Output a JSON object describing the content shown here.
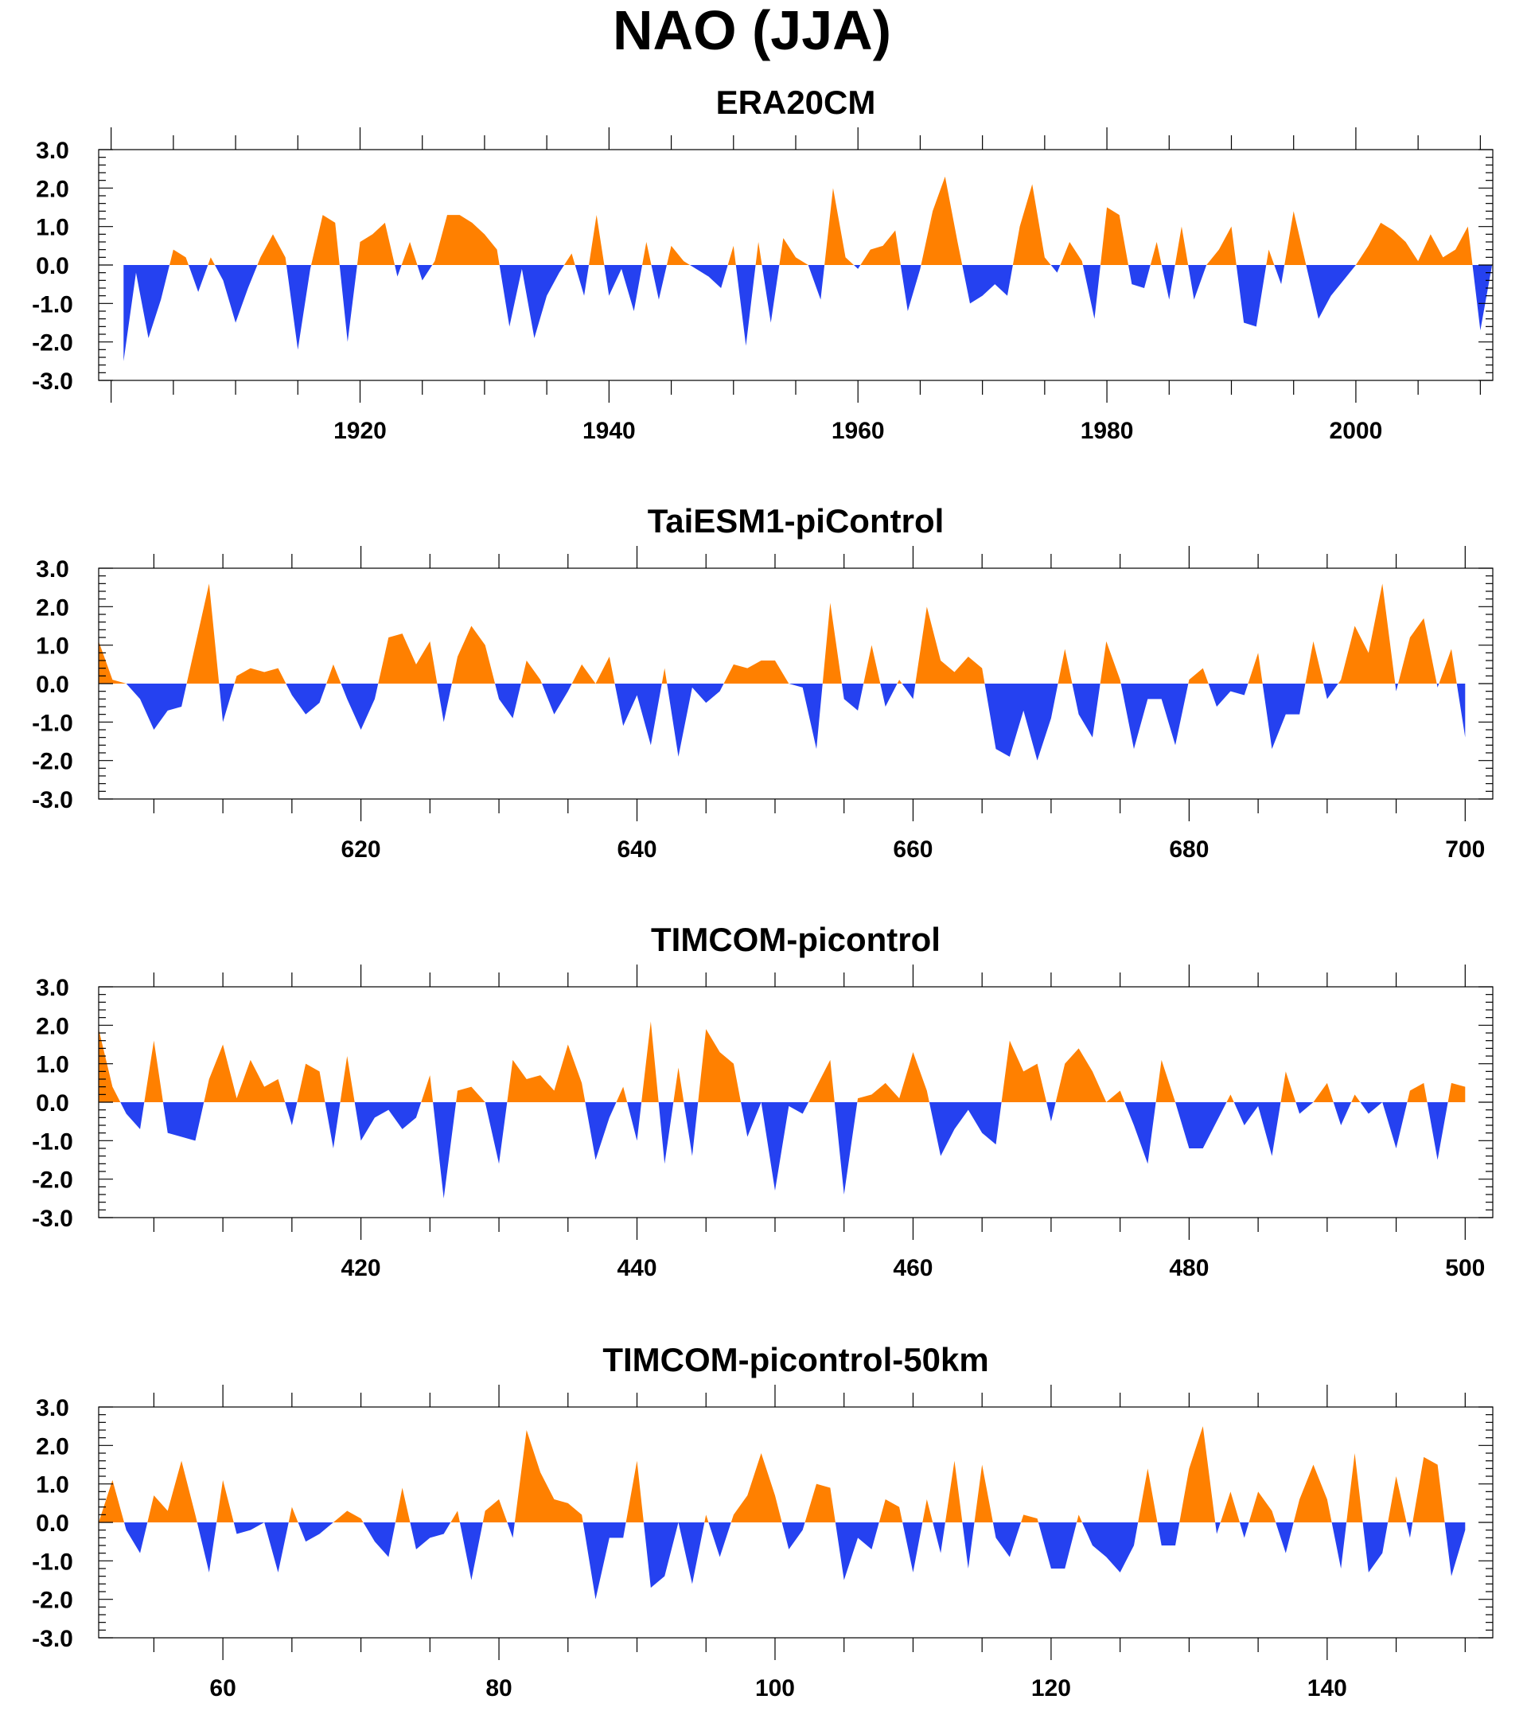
{
  "title": "NAO (JJA)",
  "colors": {
    "positive": "#ff8000",
    "negative": "#2541f0",
    "axes": "#000000",
    "background": "#ffffff"
  },
  "chart_data": [
    {
      "type": "area",
      "title": "ERA20CM",
      "xlabel": "",
      "ylabel": "",
      "xlim": [
        1899,
        2011
      ],
      "ylim": [
        -3,
        3
      ],
      "x_start": 1901,
      "x_ticks": [
        1920,
        1940,
        1960,
        1980,
        2000
      ],
      "y_ticks": [
        "3.0",
        "2.0",
        "1.0",
        "0.0",
        "-1.0",
        "-2.0",
        "-3.0"
      ],
      "grid": false,
      "fill_above_zero": "positive",
      "fill_below_zero": "negative",
      "values": [
        -2.5,
        -0.2,
        -1.9,
        -0.9,
        0.4,
        0.2,
        -0.7,
        0.2,
        -0.4,
        -1.5,
        -0.6,
        0.2,
        0.8,
        0.2,
        -2.2,
        -0.1,
        1.3,
        1.1,
        -2.0,
        0.6,
        0.8,
        1.1,
        -0.3,
        0.6,
        -0.4,
        0.1,
        1.3,
        1.3,
        1.1,
        0.8,
        0.4,
        -1.6,
        -0.1,
        -1.9,
        -0.8,
        -0.2,
        0.3,
        -0.8,
        1.3,
        -0.8,
        -0.1,
        -1.2,
        0.6,
        -0.9,
        0.5,
        0.1,
        -0.1,
        -0.3,
        -0.6,
        0.5,
        -2.1,
        0.6,
        -1.5,
        0.7,
        0.2,
        0.0,
        -0.9,
        2.0,
        0.2,
        -0.1,
        0.4,
        0.5,
        0.9,
        -1.2,
        -0.1,
        1.4,
        2.3,
        0.6,
        -1.0,
        -0.8,
        -0.5,
        -0.8,
        1.0,
        2.1,
        0.2,
        -0.2,
        0.6,
        0.1,
        -1.4,
        1.5,
        1.3,
        -0.5,
        -0.6,
        0.6,
        -0.9,
        1.0,
        -0.9,
        0.0,
        0.4,
        1.0,
        -1.5,
        -1.6,
        0.4,
        -0.5,
        1.4,
        0.0,
        -1.4,
        -0.8,
        -0.4,
        0.0,
        0.5,
        1.1,
        0.9,
        0.6,
        0.1,
        0.8,
        0.2,
        0.4,
        1.0,
        -1.7,
        0.1
      ]
    },
    {
      "type": "area",
      "title": "TaiESM1-piControl",
      "xlabel": "",
      "ylabel": "",
      "xlim": [
        601,
        702
      ],
      "ylim": [
        -3,
        3
      ],
      "x_start": 601,
      "x_ticks": [
        620,
        640,
        660,
        680,
        700
      ],
      "y_ticks": [
        "3.0",
        "2.0",
        "1.0",
        "0.0",
        "-1.0",
        "-2.0",
        "-3.0"
      ],
      "grid": false,
      "fill_above_zero": "positive",
      "fill_below_zero": "negative",
      "values": [
        1.1,
        0.1,
        0.0,
        -0.4,
        -1.2,
        -0.7,
        -0.6,
        1.0,
        2.6,
        -1.0,
        0.2,
        0.4,
        0.3,
        0.4,
        -0.3,
        -0.8,
        -0.5,
        0.5,
        -0.4,
        -1.2,
        -0.4,
        1.2,
        1.3,
        0.5,
        1.1,
        -1.0,
        0.7,
        1.5,
        1.0,
        -0.4,
        -0.9,
        0.6,
        0.1,
        -0.8,
        -0.2,
        0.5,
        0.0,
        0.7,
        -1.1,
        -0.3,
        -1.6,
        0.4,
        -1.9,
        -0.1,
        -0.5,
        -0.2,
        0.5,
        0.4,
        0.6,
        0.6,
        0.0,
        -0.1,
        -1.7,
        2.1,
        -0.4,
        -0.7,
        1.0,
        -0.6,
        0.1,
        -0.4,
        2.0,
        0.6,
        0.3,
        0.7,
        0.4,
        -1.7,
        -1.9,
        -0.7,
        -2.0,
        -0.9,
        0.9,
        -0.8,
        -1.4,
        1.1,
        0.1,
        -1.7,
        -0.4,
        -0.4,
        -1.6,
        0.1,
        0.4,
        -0.6,
        -0.2,
        -0.3,
        0.8,
        -1.7,
        -0.8,
        -0.8,
        1.1,
        -0.4,
        0.1,
        1.5,
        0.8,
        2.6,
        -0.2,
        1.2,
        1.7,
        -0.1,
        0.9,
        -1.4
      ]
    },
    {
      "type": "area",
      "title": "TIMCOM-picontrol",
      "xlabel": "",
      "ylabel": "",
      "xlim": [
        401,
        502
      ],
      "ylim": [
        -3,
        3
      ],
      "x_start": 401,
      "x_ticks": [
        420,
        440,
        460,
        480,
        500
      ],
      "y_ticks": [
        "3.0",
        "2.0",
        "1.0",
        "0.0",
        "-1.0",
        "-2.0",
        "-3.0"
      ],
      "grid": false,
      "fill_above_zero": "positive",
      "fill_below_zero": "negative",
      "values": [
        1.9,
        0.4,
        -0.3,
        -0.7,
        1.6,
        -0.8,
        -0.9,
        -1.0,
        0.6,
        1.5,
        0.1,
        1.1,
        0.4,
        0.6,
        -0.6,
        1.0,
        0.8,
        -1.2,
        1.2,
        -1.0,
        -0.4,
        -0.2,
        -0.7,
        -0.4,
        0.7,
        -2.5,
        0.3,
        0.4,
        0.0,
        -1.6,
        1.1,
        0.6,
        0.7,
        0.3,
        1.5,
        0.5,
        -1.5,
        -0.4,
        0.4,
        -1.0,
        2.1,
        -1.6,
        0.9,
        -1.4,
        1.9,
        1.3,
        1.0,
        -0.9,
        0.0,
        -2.3,
        -0.1,
        -0.3,
        0.4,
        1.1,
        -2.4,
        0.1,
        0.2,
        0.5,
        0.1,
        1.3,
        0.3,
        -1.4,
        -0.7,
        -0.2,
        -0.8,
        -1.1,
        1.6,
        0.8,
        1.0,
        -0.5,
        1.0,
        1.4,
        0.8,
        0.0,
        0.3,
        -0.6,
        -1.6,
        1.1,
        0.0,
        -1.2,
        -1.2,
        -0.5,
        0.2,
        -0.6,
        -0.1,
        -1.4,
        0.8,
        -0.3,
        0.0,
        0.5,
        -0.6,
        0.2,
        -0.3,
        0.0,
        -1.2,
        0.3,
        0.5,
        -1.5,
        0.5,
        0.4
      ]
    },
    {
      "type": "area",
      "title": "TIMCOM-picontrol-50km",
      "xlabel": "",
      "ylabel": "",
      "xlim": [
        51,
        152
      ],
      "ylim": [
        -3,
        3
      ],
      "x_start": 51,
      "x_ticks": [
        60,
        80,
        100,
        120,
        140
      ],
      "y_ticks": [
        "3.0",
        "2.0",
        "1.0",
        "0.0",
        "-1.0",
        "-2.0",
        "-3.0"
      ],
      "grid": false,
      "fill_above_zero": "positive",
      "fill_below_zero": "negative",
      "values": [
        0.0,
        1.1,
        -0.2,
        -0.8,
        0.7,
        0.3,
        1.6,
        0.2,
        -1.3,
        1.1,
        -0.3,
        -0.2,
        0.0,
        -1.3,
        0.4,
        -0.5,
        -0.3,
        0.0,
        0.3,
        0.1,
        -0.5,
        -0.9,
        0.9,
        -0.7,
        -0.4,
        -0.3,
        0.3,
        -1.5,
        0.3,
        0.6,
        -0.4,
        2.4,
        1.3,
        0.6,
        0.5,
        0.2,
        -2.0,
        -0.4,
        -0.4,
        1.6,
        -1.7,
        -1.4,
        0.0,
        -1.6,
        0.2,
        -0.9,
        0.2,
        0.7,
        1.8,
        0.7,
        -0.7,
        -0.2,
        1.0,
        0.9,
        -1.5,
        -0.4,
        -0.7,
        0.6,
        0.4,
        -1.3,
        0.6,
        -0.8,
        1.6,
        -1.2,
        1.5,
        -0.4,
        -0.9,
        0.2,
        0.1,
        -1.2,
        -1.2,
        0.2,
        -0.6,
        -0.9,
        -1.3,
        -0.6,
        1.4,
        -0.6,
        -0.6,
        1.4,
        2.5,
        -0.3,
        0.8,
        -0.4,
        0.8,
        0.3,
        -0.8,
        0.6,
        1.5,
        0.6,
        -1.2,
        1.8,
        -1.3,
        -0.8,
        1.2,
        -0.4,
        1.7,
        1.5,
        -1.4,
        -0.2
      ]
    }
  ]
}
